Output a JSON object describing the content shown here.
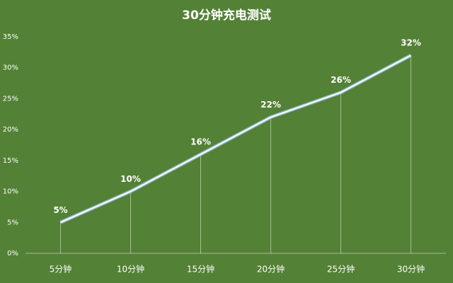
{
  "chart_data": {
    "type": "line",
    "title": "30分钟充电测试",
    "categories": [
      "5分钟",
      "10分钟",
      "15分钟",
      "20分钟",
      "25分钟",
      "30分钟"
    ],
    "values": [
      5,
      10,
      16,
      22,
      26,
      32
    ],
    "value_labels": [
      "5%",
      "10%",
      "16%",
      "22%",
      "26%",
      "32%"
    ],
    "color": "#ffffff",
    "ylim": [
      0,
      35
    ],
    "yticks": [
      {
        "value": 0,
        "label": "0%"
      },
      {
        "value": 5,
        "label": "5%"
      },
      {
        "value": 10,
        "label": "10%"
      },
      {
        "value": 15,
        "label": "15%"
      },
      {
        "value": 20,
        "label": "20%"
      },
      {
        "value": 25,
        "label": "25%"
      },
      {
        "value": 30,
        "label": "30%"
      },
      {
        "value": 35,
        "label": "35%"
      }
    ],
    "grid": false,
    "drop_lines": true
  }
}
